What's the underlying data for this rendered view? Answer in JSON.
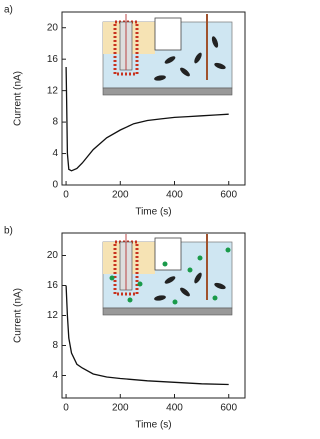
{
  "chart_data": [
    {
      "type": "line",
      "panel_label": "a)",
      "xlabel": "Time (s)",
      "ylabel": "Current (nA)",
      "x": [
        0,
        2,
        5,
        10,
        20,
        40,
        60,
        100,
        150,
        200,
        250,
        300,
        350,
        400,
        450,
        500,
        550,
        600
      ],
      "series": [
        {
          "color": "#111111",
          "values": [
            15,
            11,
            4,
            2,
            1.8,
            2.1,
            2.8,
            4.5,
            6,
            7,
            7.8,
            8.2,
            8.4,
            8.6,
            8.7,
            8.8,
            8.9,
            9.0
          ]
        }
      ],
      "xlim": [
        -15,
        660
      ],
      "ylim": [
        0,
        22
      ],
      "xticks": [
        0,
        200,
        400,
        600
      ],
      "yticks": [
        0,
        4,
        8,
        12,
        16,
        20
      ]
    },
    {
      "type": "line",
      "panel_label": "b)",
      "xlabel": "Time (s)",
      "ylabel": "Current (nA)",
      "x": [
        0,
        5,
        10,
        20,
        40,
        60,
        100,
        150,
        200,
        300,
        400,
        500,
        600
      ],
      "series": [
        {
          "color": "#111111",
          "values": [
            16,
            12,
            9,
            7,
            5.5,
            5,
            4.2,
            3.8,
            3.6,
            3.3,
            3.1,
            2.9,
            2.8
          ]
        }
      ],
      "xlim": [
        -15,
        660
      ],
      "ylim": [
        1,
        23
      ],
      "xticks": [
        0,
        200,
        400,
        600
      ],
      "yticks": [
        4,
        8,
        12,
        16,
        20
      ]
    }
  ]
}
